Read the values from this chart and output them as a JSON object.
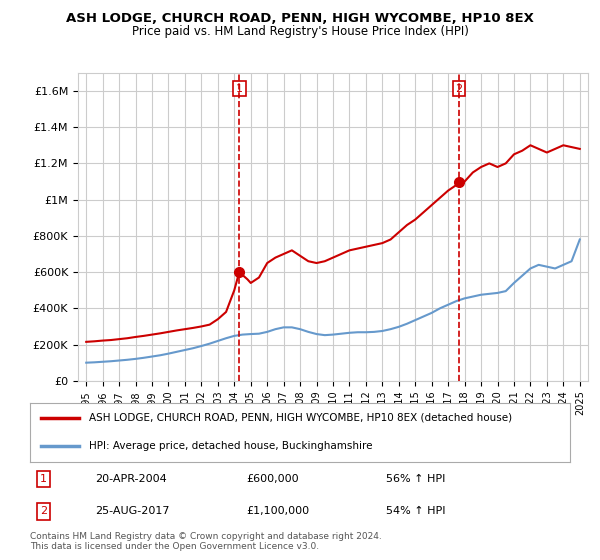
{
  "title": "ASH LODGE, CHURCH ROAD, PENN, HIGH WYCOMBE, HP10 8EX",
  "subtitle": "Price paid vs. HM Land Registry's House Price Index (HPI)",
  "ylim": [
    0,
    1700000
  ],
  "yticks": [
    0,
    200000,
    400000,
    600000,
    800000,
    1000000,
    1200000,
    1400000,
    1600000
  ],
  "ytick_labels": [
    "£0",
    "£200K",
    "£400K",
    "£600K",
    "£800K",
    "£1M",
    "£1.2M",
    "£1.4M",
    "£1.6M"
  ],
  "xlim": [
    1994.5,
    2025.5
  ],
  "xticks": [
    1995,
    1996,
    1997,
    1998,
    1999,
    2000,
    2001,
    2002,
    2003,
    2004,
    2005,
    2006,
    2007,
    2008,
    2009,
    2010,
    2011,
    2012,
    2013,
    2014,
    2015,
    2016,
    2017,
    2018,
    2019,
    2020,
    2021,
    2022,
    2023,
    2024,
    2025
  ],
  "red_line_color": "#cc0000",
  "blue_line_color": "#6699cc",
  "vline_color": "#cc0000",
  "background_color": "#ffffff",
  "grid_color": "#cccccc",
  "sale1_year": 2004.3,
  "sale1_price": 600000,
  "sale2_year": 2017.65,
  "sale2_price": 1100000,
  "legend_label_red": "ASH LODGE, CHURCH ROAD, PENN, HIGH WYCOMBE, HP10 8EX (detached house)",
  "legend_label_blue": "HPI: Average price, detached house, Buckinghamshire",
  "annotation1_num": "1",
  "annotation1_date": "20-APR-2004",
  "annotation1_price": "£600,000",
  "annotation1_hpi": "56% ↑ HPI",
  "annotation2_num": "2",
  "annotation2_date": "25-AUG-2017",
  "annotation2_price": "£1,100,000",
  "annotation2_hpi": "54% ↑ HPI",
  "footer": "Contains HM Land Registry data © Crown copyright and database right 2024.\nThis data is licensed under the Open Government Licence v3.0.",
  "red_x": [
    1995,
    1995.5,
    1996,
    1996.5,
    1997,
    1997.5,
    1998,
    1998.5,
    1999,
    1999.5,
    2000,
    2000.5,
    2001,
    2001.5,
    2002,
    2002.5,
    2003,
    2003.5,
    2004,
    2004.3,
    2004.8,
    2005,
    2005.5,
    2006,
    2006.5,
    2007,
    2007.5,
    2008,
    2008.5,
    2009,
    2009.5,
    2010,
    2010.5,
    2011,
    2011.5,
    2012,
    2012.5,
    2013,
    2013.5,
    2014,
    2014.5,
    2015,
    2015.5,
    2016,
    2016.5,
    2017,
    2017.65,
    2018,
    2018.5,
    2019,
    2019.5,
    2020,
    2020.5,
    2021,
    2021.5,
    2022,
    2022.5,
    2023,
    2023.5,
    2024,
    2024.5,
    2025
  ],
  "red_y": [
    215000,
    218000,
    222000,
    225000,
    230000,
    235000,
    242000,
    248000,
    255000,
    262000,
    270000,
    278000,
    285000,
    292000,
    300000,
    310000,
    340000,
    380000,
    500000,
    600000,
    560000,
    540000,
    570000,
    650000,
    680000,
    700000,
    720000,
    690000,
    660000,
    650000,
    660000,
    680000,
    700000,
    720000,
    730000,
    740000,
    750000,
    760000,
    780000,
    820000,
    860000,
    890000,
    930000,
    970000,
    1010000,
    1050000,
    1090000,
    1100000,
    1150000,
    1180000,
    1200000,
    1180000,
    1200000,
    1250000,
    1270000,
    1300000,
    1280000,
    1260000,
    1280000,
    1300000,
    1290000,
    1280000
  ],
  "blue_x": [
    1995,
    1995.5,
    1996,
    1996.5,
    1997,
    1997.5,
    1998,
    1998.5,
    1999,
    1999.5,
    2000,
    2000.5,
    2001,
    2001.5,
    2002,
    2002.5,
    2003,
    2003.5,
    2004,
    2004.5,
    2005,
    2005.5,
    2006,
    2006.5,
    2007,
    2007.5,
    2008,
    2008.5,
    2009,
    2009.5,
    2010,
    2010.5,
    2011,
    2011.5,
    2012,
    2012.5,
    2013,
    2013.5,
    2014,
    2014.5,
    2015,
    2015.5,
    2016,
    2016.5,
    2017,
    2017.5,
    2018,
    2018.5,
    2019,
    2019.5,
    2020,
    2020.5,
    2021,
    2021.5,
    2022,
    2022.5,
    2023,
    2023.5,
    2024,
    2024.5,
    2025
  ],
  "blue_y": [
    100000,
    102000,
    105000,
    108000,
    112000,
    116000,
    121000,
    127000,
    134000,
    141000,
    150000,
    160000,
    170000,
    180000,
    192000,
    205000,
    220000,
    235000,
    248000,
    255000,
    258000,
    260000,
    270000,
    285000,
    295000,
    295000,
    285000,
    270000,
    258000,
    252000,
    255000,
    260000,
    265000,
    268000,
    268000,
    270000,
    275000,
    285000,
    298000,
    315000,
    335000,
    355000,
    375000,
    400000,
    420000,
    440000,
    455000,
    465000,
    475000,
    480000,
    485000,
    495000,
    540000,
    580000,
    620000,
    640000,
    630000,
    620000,
    640000,
    660000,
    780000
  ]
}
